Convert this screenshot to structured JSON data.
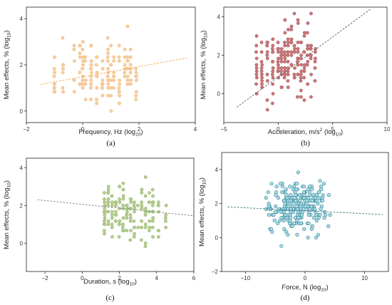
{
  "chart_data": [
    {
      "id": "a",
      "type": "scatter",
      "panel_label": "(a)",
      "xlabel": "Frequency, Hz (log",
      "xlabel_sub": "10",
      "xlabel_end": ")",
      "ylabel": "Mean effects, % (log",
      "ylabel_sub": "10",
      "ylabel_end": ")",
      "xlim": [
        -2,
        4
      ],
      "ylim": [
        -0.5,
        4.5
      ],
      "xticks": [
        -2,
        0,
        2,
        4
      ],
      "yticks": [
        0,
        2,
        4
      ],
      "colors": {
        "point_fill": "#f7cfa1",
        "point_stroke": "#efb87c",
        "trend": "#ef9f45"
      },
      "trend": {
        "x": [
          -1.5,
          3.7
        ],
        "y": [
          1.15,
          2.3
        ]
      },
      "x_bins": [
        -1.0,
        -0.7,
        -0.3,
        -0.1,
        0.0,
        0.1,
        0.3,
        0.5,
        0.7,
        0.9,
        1.0,
        1.1,
        1.3,
        1.5,
        1.6,
        1.7,
        1.9
      ],
      "point_count": 150,
      "random_seed": 11
    },
    {
      "id": "b",
      "type": "scatter",
      "panel_label": "(b)",
      "xlabel": "Acceleration, m/s",
      "xlabel_sup": "2",
      "xlabel_mid": " (log",
      "xlabel_sub": "10",
      "xlabel_end": ")",
      "ylabel": "Mean effects, % (log",
      "ylabel_sub": "10",
      "ylabel_end": ")",
      "xlim": [
        -5,
        10
      ],
      "ylim": [
        -1.5,
        4.5
      ],
      "xticks": [
        -5,
        0,
        5,
        10
      ],
      "yticks": [
        0,
        2,
        4
      ],
      "colors": {
        "point_fill": "#c9777a",
        "point_stroke": "#b05f63",
        "trend": "#555555"
      },
      "trend": {
        "x": [
          -3.8,
          8.5
        ],
        "y": [
          -0.7,
          4.4
        ]
      },
      "x_bins": [
        -2.0,
        -1.5,
        -1.0,
        -0.5,
        0.0,
        0.3,
        0.6,
        0.9,
        1.2,
        1.5,
        1.8,
        2.1,
        2.4,
        2.7,
        3.0,
        3.4
      ],
      "point_count": 180,
      "random_seed": 23
    },
    {
      "id": "c",
      "type": "scatter",
      "panel_label": "(c)",
      "xlabel": "Duration, s (log",
      "xlabel_sub": "10",
      "xlabel_end": ")",
      "ylabel": "Mean effects, % (log",
      "ylabel_sub": "10",
      "ylabel_end": ")",
      "xlim": [
        -3,
        6
      ],
      "ylim": [
        -1.5,
        4.5
      ],
      "xticks": [
        -2,
        0,
        2,
        4,
        6
      ],
      "yticks": [
        0,
        2,
        4
      ],
      "colors": {
        "point_fill": "#b6cf92",
        "point_stroke": "#97b46f",
        "trend": "#777777"
      },
      "trend": {
        "x": [
          -2.4,
          6.0
        ],
        "y": [
          2.3,
          1.45
        ]
      },
      "x_bins": [
        1.2,
        1.4,
        1.6,
        1.8,
        2.0,
        2.2,
        2.4,
        2.6,
        2.8,
        3.0,
        3.2,
        3.4,
        3.6,
        3.8,
        4.1,
        4.5
      ],
      "point_count": 150,
      "random_seed": 37
    },
    {
      "id": "d",
      "type": "scatter",
      "panel_label": "(d)",
      "xlabel": "Force, N (log",
      "xlabel_sub": "10",
      "xlabel_end": ")",
      "ylabel": "Mean effects, % (log",
      "ylabel_sub": "10",
      "ylabel_end": ")",
      "xlim": [
        -14,
        14
      ],
      "ylim": [
        -2,
        5
      ],
      "xticks": [
        -10,
        0,
        10
      ],
      "yticks": [
        -2,
        0,
        2,
        4
      ],
      "colors": {
        "point_fill": "#a9dbe5",
        "point_stroke": "#2f7f92",
        "trend": "#2a6c7c"
      },
      "trend": {
        "x": [
          -13,
          13
        ],
        "y": [
          1.8,
          1.35
        ]
      },
      "x_bins": [
        -6,
        -5,
        -4,
        -3.5,
        -3,
        -2.5,
        -2,
        -1.5,
        -1,
        -0.5,
        0,
        0.5,
        1,
        1.5,
        2,
        3
      ],
      "point_count": 240,
      "random_seed": 51
    }
  ]
}
